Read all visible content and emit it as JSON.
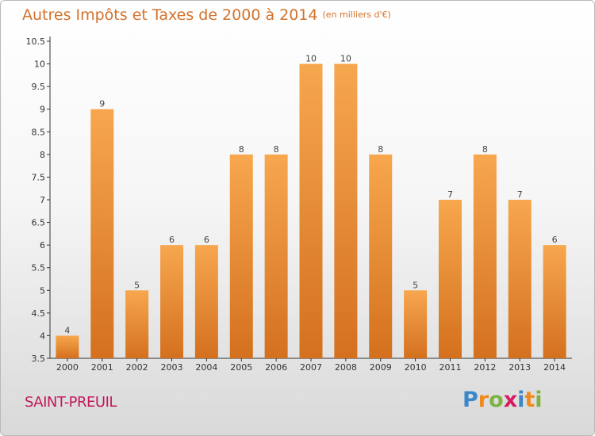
{
  "title": "Autres Impôts et Taxes de 2000 à 2014",
  "unit_label": "(en milliers d'€)",
  "place": "SAINT-PREUIL",
  "brand": {
    "text": "Proxiti",
    "letters": [
      {
        "ch": "P",
        "color": "#3b87c8"
      },
      {
        "ch": "r",
        "color": "#f08a1e"
      },
      {
        "ch": "o",
        "color": "#7cb342"
      },
      {
        "ch": "x",
        "color": "#d81b60"
      },
      {
        "ch": "i",
        "color": "#3b87c8"
      },
      {
        "ch": "t",
        "color": "#f08a1e"
      },
      {
        "ch": "i",
        "color": "#7cb342"
      }
    ]
  },
  "colors": {
    "bar_top": "#f7a74e",
    "bar_bottom": "#d4701e",
    "title": "#d3712a",
    "place": "#c2185b"
  },
  "chart_data": {
    "type": "bar",
    "categories": [
      "2000",
      "2001",
      "2002",
      "2003",
      "2004",
      "2005",
      "2006",
      "2007",
      "2008",
      "2009",
      "2010",
      "2011",
      "2012",
      "2013",
      "2014"
    ],
    "values": [
      4,
      9,
      5,
      6,
      6,
      8,
      8,
      10,
      10,
      8,
      5,
      7,
      8,
      7,
      6
    ],
    "ylim": [
      3.5,
      10.5
    ],
    "yticks": [
      3.5,
      4,
      4.5,
      5,
      5.5,
      6,
      6.5,
      7,
      7.5,
      8,
      8.5,
      9,
      9.5,
      10,
      10.5
    ],
    "grid": false,
    "data_labels": true
  }
}
